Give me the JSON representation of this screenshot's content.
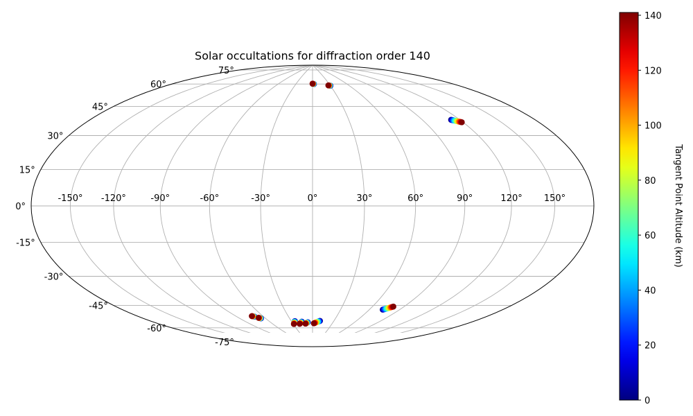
{
  "chart_data": {
    "type": "scatter",
    "projection": "hammer",
    "title": "Solar occultations for diffraction order 140",
    "grid": true,
    "lon_ticks": [
      -150,
      -120,
      -90,
      -60,
      -30,
      0,
      30,
      60,
      90,
      120,
      150
    ],
    "lat_ticks": [
      -75,
      -60,
      -45,
      -30,
      -15,
      0,
      15,
      30,
      45,
      60,
      75
    ],
    "lon_tick_labels": [
      "-150°",
      "-120°",
      "-90°",
      "-60°",
      "-30°",
      "0°",
      "30°",
      "60°",
      "90°",
      "120°",
      "150°"
    ],
    "lat_tick_labels": [
      "-75°",
      "-60°",
      "-45°",
      "-30°",
      "-15°",
      "0°",
      "15°",
      "30°",
      "45°",
      "60°",
      "75°"
    ],
    "colorbar": {
      "label": "Tangent Point Altitude (km)",
      "colormap": "jet",
      "range": [
        0,
        141
      ],
      "ticks": [
        0,
        20,
        40,
        60,
        80,
        100,
        120,
        140
      ],
      "tick_labels": [
        "0",
        "20",
        "40",
        "60",
        "80",
        "100",
        "120",
        "140"
      ]
    },
    "occultations": [
      {
        "lon_start": 2.5,
        "lat_start": 75.5,
        "lon_end": 0.0,
        "lat_end": 75.8
      },
      {
        "lon_start": 30.0,
        "lat_start": 74.0,
        "lon_end": 27.0,
        "lat_end": 74.3
      },
      {
        "lon_start": 113.0,
        "lat_start": 46.0,
        "lon_end": 119.0,
        "lat_end": 44.0
      },
      {
        "lon_start": -70.5,
        "lat_start": -65.5,
        "lon_end": -72.5,
        "lat_end": -65.0
      },
      {
        "lon_start": -65.5,
        "lat_start": -67.0,
        "lon_end": -67.5,
        "lat_end": -66.5
      },
      {
        "lon_start": -25.0,
        "lat_start": -70.5,
        "lon_end": -29.0,
        "lat_end": -72.5
      },
      {
        "lon_start": -15.5,
        "lat_start": -71.0,
        "lon_end": -20.0,
        "lat_end": -72.5
      },
      {
        "lon_start": -7.0,
        "lat_start": -71.5,
        "lon_end": -11.0,
        "lat_end": -72.5
      },
      {
        "lon_start": 10.5,
        "lat_start": -70.5,
        "lon_end": 2.0,
        "lat_end": -72.3
      },
      {
        "lon_start": 73.5,
        "lat_start": -60.5,
        "lon_end": 80.0,
        "lat_end": -58.0
      }
    ]
  }
}
